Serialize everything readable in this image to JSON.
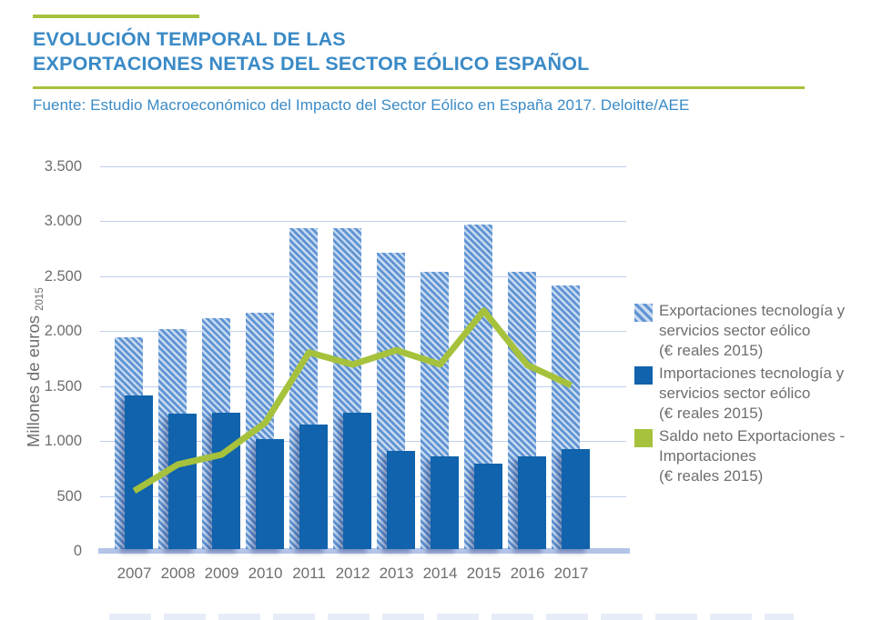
{
  "header": {
    "title_line1": "EVOLUCIÓN TEMPORAL DE LAS",
    "title_line2": "EXPORTACIONES NETAS DEL SECTOR EÓLICO ESPAÑOL",
    "source": "Fuente: Estudio Macroeconómico del Impacto del Sector Eólico en España 2017. Deloitte/AEE"
  },
  "chart_data": {
    "type": "bar",
    "title": "Evolución temporal de las exportaciones netas del sector eólico español",
    "categories": [
      "2007",
      "2008",
      "2009",
      "2010",
      "2011",
      "2012",
      "2013",
      "2014",
      "2015",
      "2016",
      "2017"
    ],
    "series": [
      {
        "name": "Exportaciones tecnología y servicios sector eólico (€ reales 2015)",
        "type": "bar",
        "style": "striped-blue",
        "values": [
          1930,
          2000,
          2100,
          2150,
          2920,
          2920,
          2700,
          2520,
          2950,
          2520,
          2400
        ]
      },
      {
        "name": "Importaciones tecnología y servicios sector eólico (€ reales 2015)",
        "type": "bar",
        "style": "solid-dark-blue",
        "values": [
          1400,
          1230,
          1240,
          1000,
          1130,
          1240,
          890,
          840,
          780,
          845,
          910
        ]
      },
      {
        "name": "Saldo neto Exportaciones - Importaciones (€ reales 2015)",
        "type": "line",
        "style": "green",
        "values": [
          530,
          770,
          860,
          1150,
          1790,
          1680,
          1810,
          1680,
          2170,
          1675,
          1490
        ]
      }
    ],
    "xlabel": "",
    "ylabel": "Millones de euros",
    "ylabel_subscript": "2015",
    "ylim": [
      0,
      3500
    ],
    "ytick_labels_top_to_bottom": [
      "3.500",
      "3.000",
      "2.500",
      "2.000",
      "1.500",
      "1.000",
      "500",
      "0"
    ],
    "grid": true,
    "legend_position": "right"
  },
  "legend": {
    "items": [
      {
        "swatch": "striped-blue",
        "lines": [
          "Exportaciones tecnología y",
          "servicios sector eólico",
          "(€ reales 2015)"
        ]
      },
      {
        "swatch": "solid-dark-blue",
        "lines": [
          "Importaciones tecnología y",
          "servicios sector eólico",
          "(€ reales 2015)"
        ]
      },
      {
        "swatch": "green",
        "lines": [
          "Saldo neto Exportaciones -",
          "Importaciones",
          "(€ reales 2015)"
        ]
      }
    ]
  },
  "colors": {
    "title_blue": "#3a8ac6",
    "accent_green": "#a6c23c",
    "bar_dark_blue": "#1063ac",
    "bar_stripe_blue": "#6094d2",
    "bar_stripe_light": "#c9dbf2",
    "gridline": "#bfcfec",
    "baseline": "#b3c4e8",
    "text_gray": "#6d6e71"
  }
}
